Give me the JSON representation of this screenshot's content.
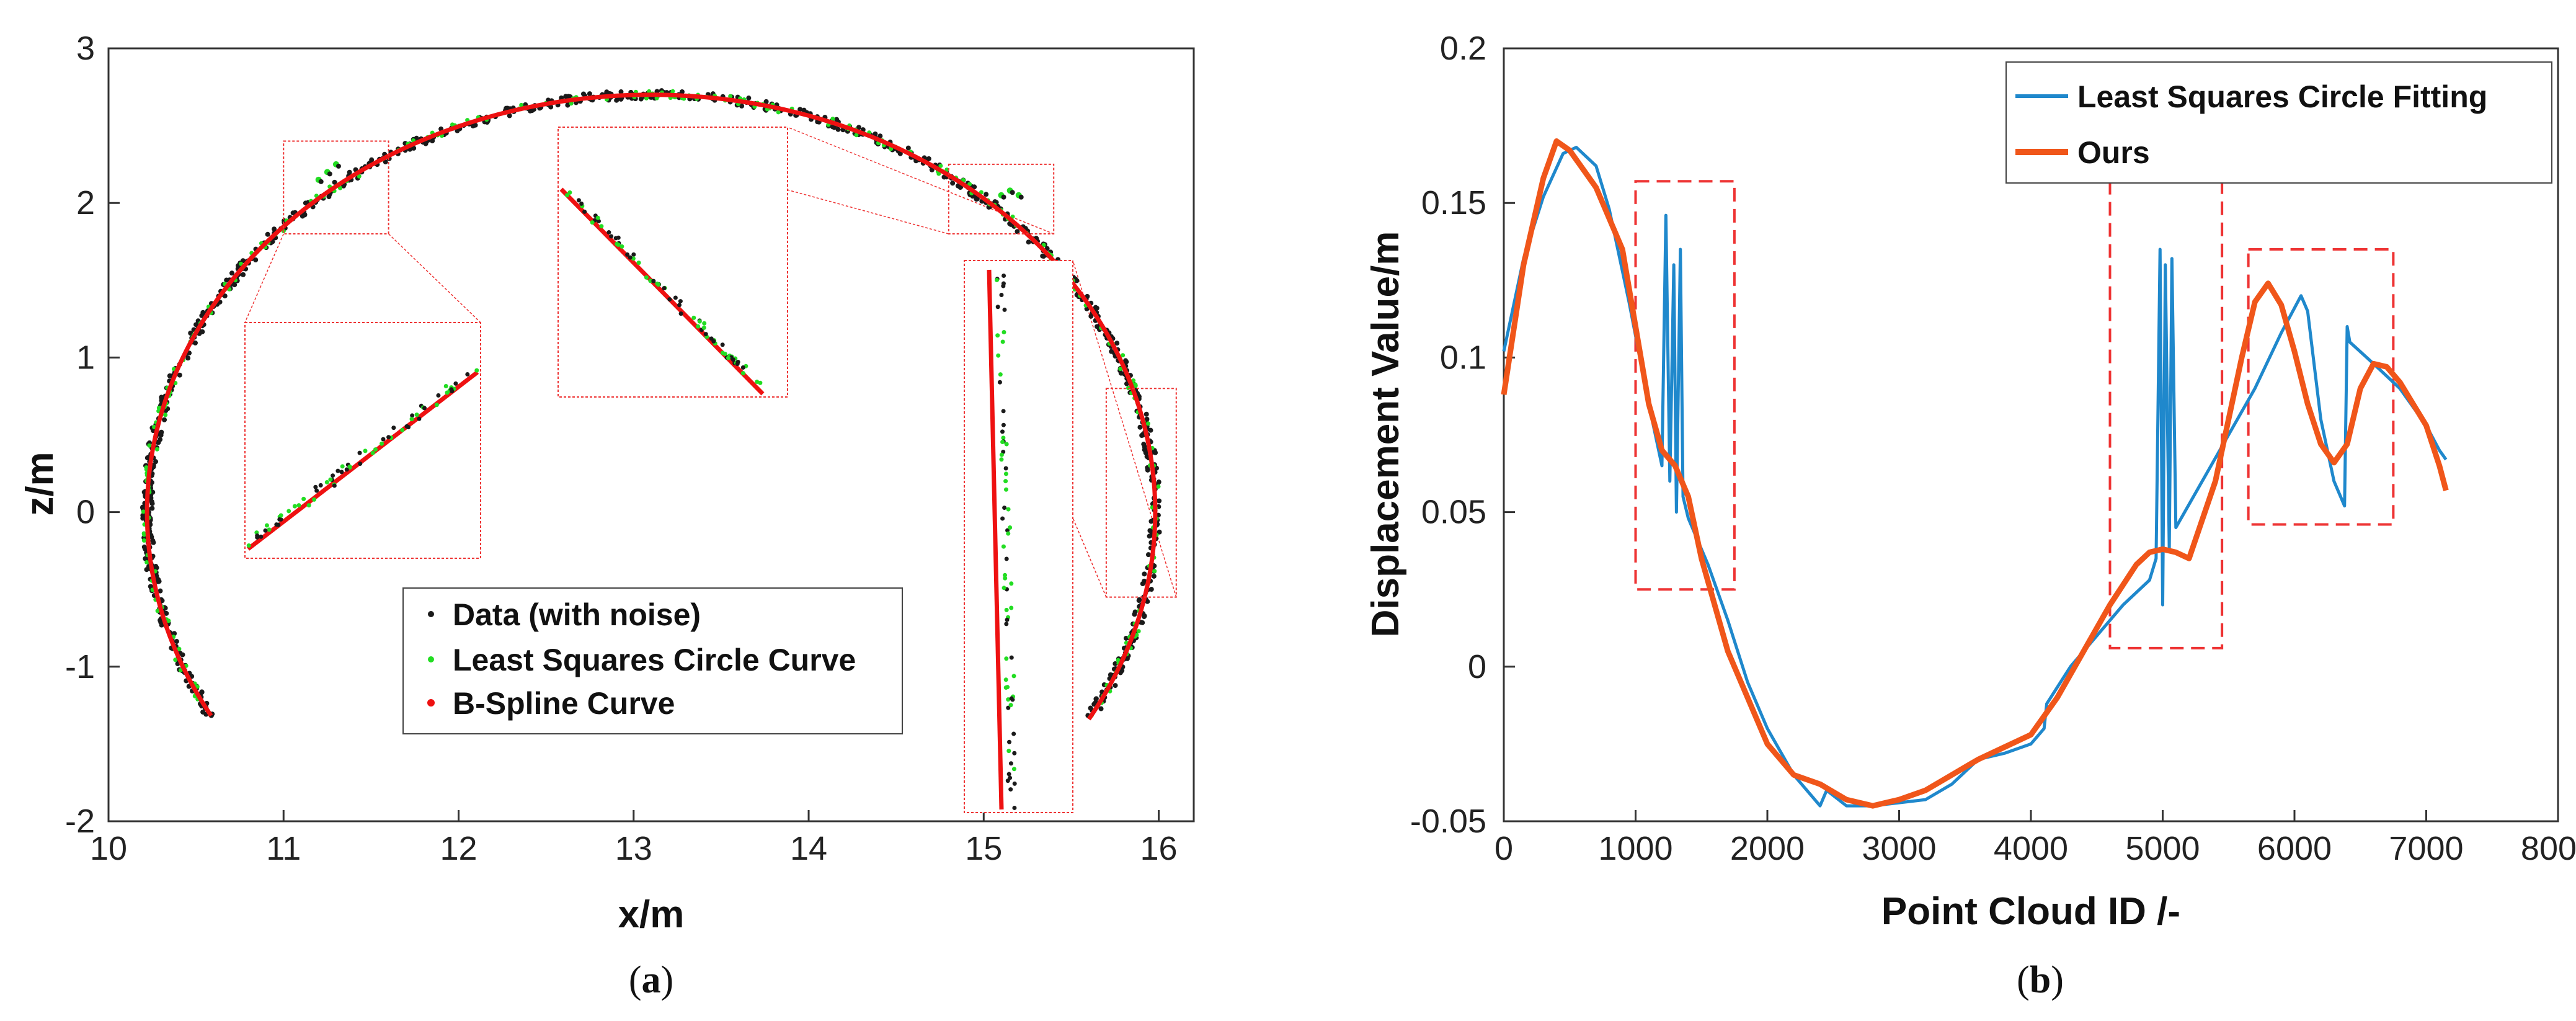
{
  "figure": {
    "caption_a": {
      "open": "(",
      "letter": "a",
      "close": ")"
    },
    "caption_b": {
      "open": "(",
      "letter": "b",
      "close": ")"
    }
  },
  "colors": {
    "data": "#1a1a1a",
    "lsq_green": "#22dd22",
    "bspline_red": "#ee1111",
    "blue": "#1f88cc",
    "orange": "#f0561a",
    "box_red": "#ee3333"
  },
  "chart_data": [
    {
      "type": "scatter",
      "panel": "a",
      "xlabel": "x/m",
      "ylabel": "z/m",
      "xlim": [
        10,
        16.2
      ],
      "ylim": [
        -2,
        3
      ],
      "xticks": [
        "10",
        "11",
        "12",
        "13",
        "14",
        "15",
        "16"
      ],
      "yticks": [
        "-2",
        "-1",
        "0",
        "1",
        "2",
        "3"
      ],
      "legend": [
        "Data (with noise)",
        "Least Squares Circle Curve",
        "B-Spline Curve"
      ],
      "series": [
        {
          "name": "Data (with noise)",
          "marker": "dot",
          "color": "#1a1a1a"
        },
        {
          "name": "Least Squares Circle Curve",
          "marker": "dot",
          "color": "#22dd22"
        },
        {
          "name": "B-Spline Curve",
          "line": "solid",
          "color": "#ee1111"
        }
      ],
      "bspline_arc": {
        "center": [
          13.1,
          0.0
        ],
        "radius_x": 2.88,
        "radius_z": 2.7,
        "x_start": 10.58,
        "z_start": -1.32,
        "x_end": 15.62,
        "z_end": -1.35
      },
      "zoom_regions": [
        {
          "name": "upper-left",
          "x": [
            11.0,
            11.6
          ],
          "z": [
            1.8,
            2.4
          ]
        },
        {
          "name": "upper-right",
          "x": [
            14.8,
            15.4
          ],
          "z": [
            1.8,
            2.25
          ]
        },
        {
          "name": "right",
          "x": [
            15.7,
            16.1
          ],
          "z": [
            -0.55,
            0.8
          ]
        }
      ]
    },
    {
      "type": "line",
      "panel": "b",
      "xlabel": "Point Cloud ID /-",
      "ylabel": "Displacement Value/m",
      "xlim": [
        0,
        8000
      ],
      "ylim": [
        -0.05,
        0.2
      ],
      "xticks": [
        "0",
        "1000",
        "2000",
        "3000",
        "4000",
        "5000",
        "6000",
        "7000",
        "8000"
      ],
      "yticks": [
        "-0.05",
        "0",
        "0.05",
        "0.1",
        "0.15",
        "0.2"
      ],
      "legend": [
        "Least Squares Circle Fitting",
        "Ours"
      ],
      "series": [
        {
          "name": "Least Squares Circle Fitting",
          "color": "#1f88cc",
          "x": [
            0,
            150,
            300,
            450,
            550,
            700,
            800,
            950,
            1100,
            1200,
            1230,
            1260,
            1290,
            1310,
            1340,
            1360,
            1400,
            1550,
            1700,
            1850,
            2000,
            2200,
            2400,
            2450,
            2600,
            2800,
            3000,
            3200,
            3400,
            3600,
            3800,
            4000,
            4100,
            4120,
            4300,
            4500,
            4700,
            4900,
            4950,
            4980,
            5000,
            5020,
            5050,
            5070,
            5100,
            5300,
            5500,
            5700,
            5900,
            6050,
            6100,
            6200,
            6300,
            6380,
            6400,
            6420,
            6600,
            6800,
            7000,
            7100,
            7150
          ],
          "y": [
            0.102,
            0.132,
            0.152,
            0.166,
            0.168,
            0.162,
            0.148,
            0.118,
            0.085,
            0.065,
            0.146,
            0.06,
            0.13,
            0.05,
            0.135,
            0.055,
            0.048,
            0.033,
            0.015,
            -0.005,
            -0.02,
            -0.035,
            -0.045,
            -0.04,
            -0.045,
            -0.045,
            -0.044,
            -0.043,
            -0.038,
            -0.03,
            -0.028,
            -0.025,
            -0.02,
            -0.012,
            0.0,
            0.01,
            0.02,
            0.028,
            0.035,
            0.135,
            0.02,
            0.13,
            0.038,
            0.132,
            0.045,
            0.06,
            0.075,
            0.09,
            0.108,
            0.12,
            0.115,
            0.08,
            0.06,
            0.052,
            0.11,
            0.105,
            0.098,
            0.09,
            0.078,
            0.07,
            0.067
          ]
        },
        {
          "name": "Ours",
          "color": "#f0561a",
          "x": [
            0,
            150,
            300,
            400,
            500,
            700,
            900,
            1000,
            1100,
            1200,
            1300,
            1400,
            1500,
            1600,
            1700,
            1800,
            2000,
            2200,
            2400,
            2600,
            2800,
            3000,
            3200,
            3400,
            3600,
            3800,
            4000,
            4200,
            4400,
            4600,
            4800,
            4900,
            5000,
            5100,
            5200,
            5400,
            5600,
            5700,
            5800,
            5900,
            6000,
            6100,
            6200,
            6300,
            6400,
            6500,
            6600,
            6700,
            6800,
            6900,
            7000,
            7100,
            7150
          ],
          "y": [
            0.088,
            0.13,
            0.158,
            0.17,
            0.167,
            0.155,
            0.135,
            0.11,
            0.085,
            0.07,
            0.065,
            0.055,
            0.035,
            0.02,
            0.005,
            -0.005,
            -0.025,
            -0.035,
            -0.038,
            -0.043,
            -0.045,
            -0.043,
            -0.04,
            -0.035,
            -0.03,
            -0.026,
            -0.022,
            -0.01,
            0.005,
            0.02,
            0.033,
            0.037,
            0.038,
            0.037,
            0.035,
            0.06,
            0.1,
            0.118,
            0.124,
            0.117,
            0.102,
            0.085,
            0.072,
            0.066,
            0.072,
            0.09,
            0.098,
            0.097,
            0.092,
            0.085,
            0.078,
            0.065,
            0.057
          ]
        }
      ],
      "dashed_boxes": [
        {
          "x": [
            1000,
            1750
          ],
          "y": [
            0.025,
            0.157
          ]
        },
        {
          "x": [
            4600,
            5450
          ],
          "y": [
            0.006,
            0.162
          ]
        },
        {
          "x": [
            5650,
            6750
          ],
          "y": [
            0.046,
            0.135
          ]
        }
      ]
    }
  ]
}
